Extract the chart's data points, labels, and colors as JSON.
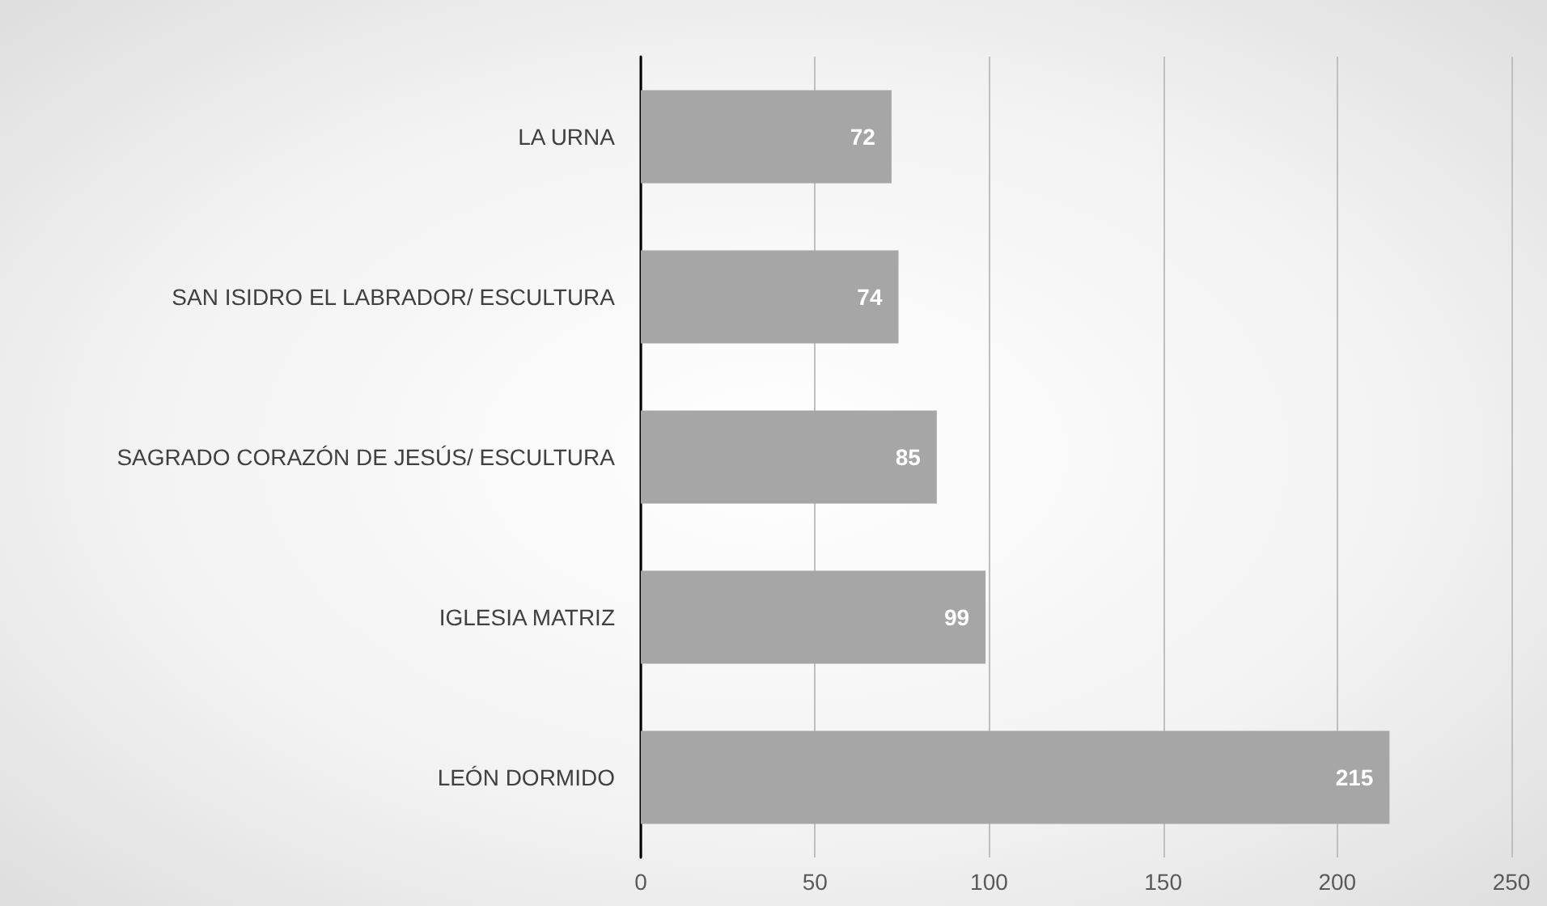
{
  "chart_data": {
    "type": "bar",
    "orientation": "horizontal",
    "categories": [
      "LA URNA",
      "SAN ISIDRO EL LABRADOR/ ESCULTURA",
      "SAGRADO CORAZÓN DE JESÚS/ ESCULTURA",
      "IGLESIA MATRIZ",
      "LEÓN DORMIDO"
    ],
    "values": [
      72,
      74,
      85,
      99,
      215
    ],
    "color": "#a6a6a6",
    "xlim": [
      0,
      250
    ],
    "xticks": [
      0,
      50,
      100,
      150,
      200,
      250
    ],
    "grid": "x",
    "data_labels": true
  }
}
